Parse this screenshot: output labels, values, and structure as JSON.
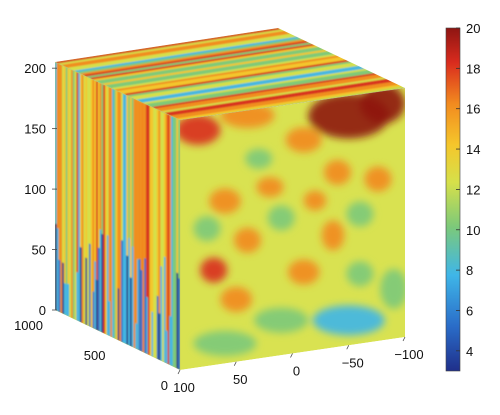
{
  "chart_data": {
    "type": "heatmap",
    "subtype": "3d-volume-slice-cube",
    "title": "",
    "vertical_axis": {
      "label": "",
      "range": [
        0,
        220
      ],
      "ticks": [
        "0",
        "50",
        "100",
        "150",
        "200"
      ]
    },
    "depth_axis": {
      "label": "",
      "range": [
        0,
        1000
      ],
      "ticks": [
        "0",
        "500",
        "1000"
      ]
    },
    "front_axis": {
      "label": "",
      "range": [
        100,
        -100
      ],
      "ticks": [
        "100",
        "50",
        "0",
        "−50",
        "−100"
      ]
    },
    "colorbar": {
      "range": [
        3,
        20
      ],
      "ticks": [
        "4",
        "6",
        "8",
        "10",
        "12",
        "14",
        "16",
        "18",
        "20"
      ],
      "colors": [
        "#1f2f8a",
        "#2a6cc8",
        "#3fb6e8",
        "#7cc97a",
        "#d6e04a",
        "#f5c62b",
        "#f28a1f",
        "#d92b1e",
        "#8e1512"
      ]
    },
    "face_summary": {
      "front_face": "mostly values 11-14 (yellow-green) with hot spots 16-19 in upper corners and lower values 8-10 along bottom edge",
      "left_face": "vertical streaks, alternating 8-17, with low values 4-7 near the bottom",
      "top_face": "horizontal streaks of 8-18"
    }
  }
}
